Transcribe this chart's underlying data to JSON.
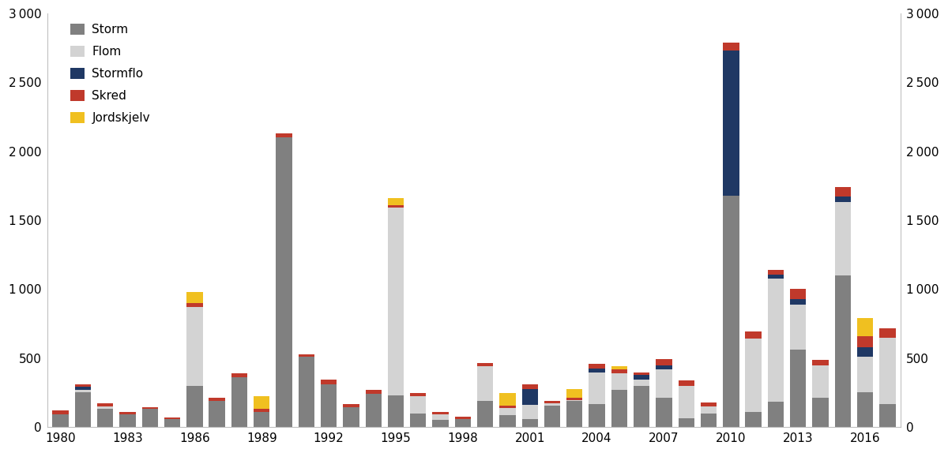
{
  "years": [
    1980,
    1981,
    1982,
    1983,
    1984,
    1985,
    1986,
    1987,
    1988,
    1989,
    1990,
    1991,
    1992,
    1993,
    1994,
    1995,
    1996,
    1997,
    1998,
    1999,
    2000,
    2001,
    2002,
    2003,
    2004,
    2005,
    2006,
    2007,
    2008,
    2009,
    2010,
    2011,
    2012,
    2013,
    2014,
    2015,
    2016,
    2017
  ],
  "storm": [
    90,
    250,
    130,
    90,
    130,
    55,
    300,
    190,
    360,
    110,
    2100,
    510,
    310,
    145,
    240,
    230,
    95,
    50,
    55,
    190,
    85,
    55,
    155,
    190,
    165,
    270,
    295,
    210,
    65,
    95,
    1680,
    110,
    185,
    560,
    210,
    1100,
    250,
    165
  ],
  "flom": [
    0,
    20,
    20,
    0,
    0,
    0,
    570,
    0,
    0,
    0,
    0,
    0,
    0,
    0,
    0,
    1360,
    130,
    40,
    0,
    250,
    50,
    105,
    15,
    5,
    230,
    120,
    50,
    205,
    230,
    55,
    0,
    530,
    890,
    330,
    235,
    530,
    260,
    480
  ],
  "stormflo": [
    0,
    20,
    0,
    0,
    0,
    0,
    0,
    0,
    0,
    0,
    0,
    0,
    0,
    0,
    0,
    0,
    0,
    0,
    0,
    0,
    0,
    115,
    0,
    0,
    30,
    0,
    30,
    30,
    0,
    0,
    1050,
    0,
    30,
    40,
    0,
    40,
    70,
    0
  ],
  "skred": [
    30,
    20,
    20,
    20,
    15,
    15,
    30,
    20,
    30,
    20,
    30,
    15,
    35,
    20,
    30,
    20,
    20,
    20,
    20,
    25,
    20,
    35,
    20,
    15,
    35,
    30,
    20,
    45,
    45,
    30,
    60,
    55,
    35,
    70,
    40,
    70,
    80,
    70
  ],
  "jordskjelv": [
    0,
    0,
    0,
    0,
    0,
    0,
    80,
    0,
    0,
    95,
    0,
    0,
    0,
    0,
    0,
    50,
    0,
    0,
    0,
    0,
    90,
    0,
    0,
    65,
    0,
    20,
    0,
    0,
    0,
    0,
    0,
    0,
    0,
    0,
    0,
    0,
    130,
    0
  ],
  "colors": {
    "storm": "#808080",
    "flom": "#d3d3d3",
    "stormflo": "#1f3864",
    "skred": "#c0392b",
    "jordskjelv": "#f0c020"
  },
  "ylim": [
    0,
    3000
  ],
  "yticks": [
    0,
    500,
    1000,
    1500,
    2000,
    2500,
    3000
  ],
  "xtick_labels": [
    "1980",
    "1983",
    "1986",
    "1989",
    "1992",
    "1995",
    "1998",
    "2001",
    "2004",
    "2007",
    "2010",
    "2013",
    "2016"
  ],
  "xtick_positions": [
    0,
    3,
    6,
    9,
    12,
    15,
    18,
    21,
    24,
    27,
    30,
    33,
    36
  ],
  "background_color": "#ffffff",
  "bar_width": 0.72
}
